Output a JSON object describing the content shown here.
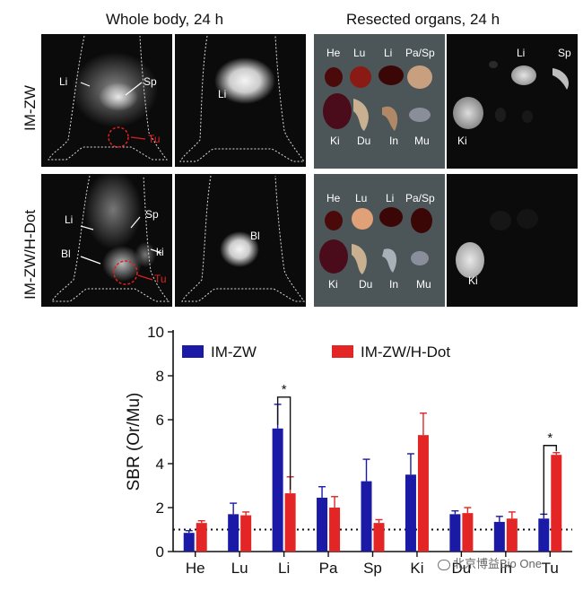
{
  "figure": {
    "col_titles": [
      "Whole body, 24 h",
      "Resected organs, 24 h"
    ],
    "row_labels": [
      "IM-ZW",
      "IM-ZW/H-Dot"
    ],
    "panel_a_labels": {
      "li": "Li",
      "sp": "Sp",
      "tu": "Tu"
    },
    "panel_b_labels": {
      "li": "Li"
    },
    "panel_c_labels": {
      "li": "Li",
      "sp": "Sp",
      "bl": "Bl",
      "ki": "ki",
      "tu": "Tu"
    },
    "panel_d_labels": {
      "bl": "Bl"
    },
    "organ_labels_top": [
      "He",
      "Lu",
      "Li",
      "Pa/Sp"
    ],
    "organ_labels_bottom": [
      "Ki",
      "Du",
      "In",
      "Mu"
    ],
    "fluor_row1_labels": {
      "li": "Li",
      "sp": "Sp",
      "ki": "Ki"
    },
    "fluor_row2_labels": {
      "ki": "Ki"
    },
    "watermark": "北京博益Bio One"
  },
  "chart_data": {
    "type": "bar",
    "categories": [
      "He",
      "Lu",
      "Li",
      "Pa",
      "Sp",
      "Ki",
      "Du",
      "In",
      "Tu"
    ],
    "series": [
      {
        "name": "IM-ZW",
        "color": "#1a1aa6",
        "values": [
          0.85,
          1.7,
          5.6,
          2.45,
          3.2,
          3.5,
          1.7,
          1.35,
          1.5
        ],
        "errors": [
          0.1,
          0.5,
          1.1,
          0.5,
          1.0,
          0.95,
          0.15,
          0.25,
          0.2
        ]
      },
      {
        "name": "IM-ZW/H-Dot",
        "color": "#e32525",
        "values": [
          1.3,
          1.65,
          2.65,
          2.0,
          1.3,
          5.3,
          1.75,
          1.5,
          4.4
        ],
        "errors": [
          0.1,
          0.15,
          0.75,
          0.5,
          0.15,
          1.0,
          0.25,
          0.3,
          0.1
        ]
      }
    ],
    "ylabel": "SBR (Or/Mu)",
    "ylim": [
      0,
      10
    ],
    "yticks": [
      0,
      2,
      4,
      6,
      8,
      10
    ],
    "reference_line": 1,
    "legend": "top",
    "significance": [
      {
        "category": "Li",
        "label": "*"
      },
      {
        "category": "Tu",
        "label": "*"
      }
    ]
  }
}
